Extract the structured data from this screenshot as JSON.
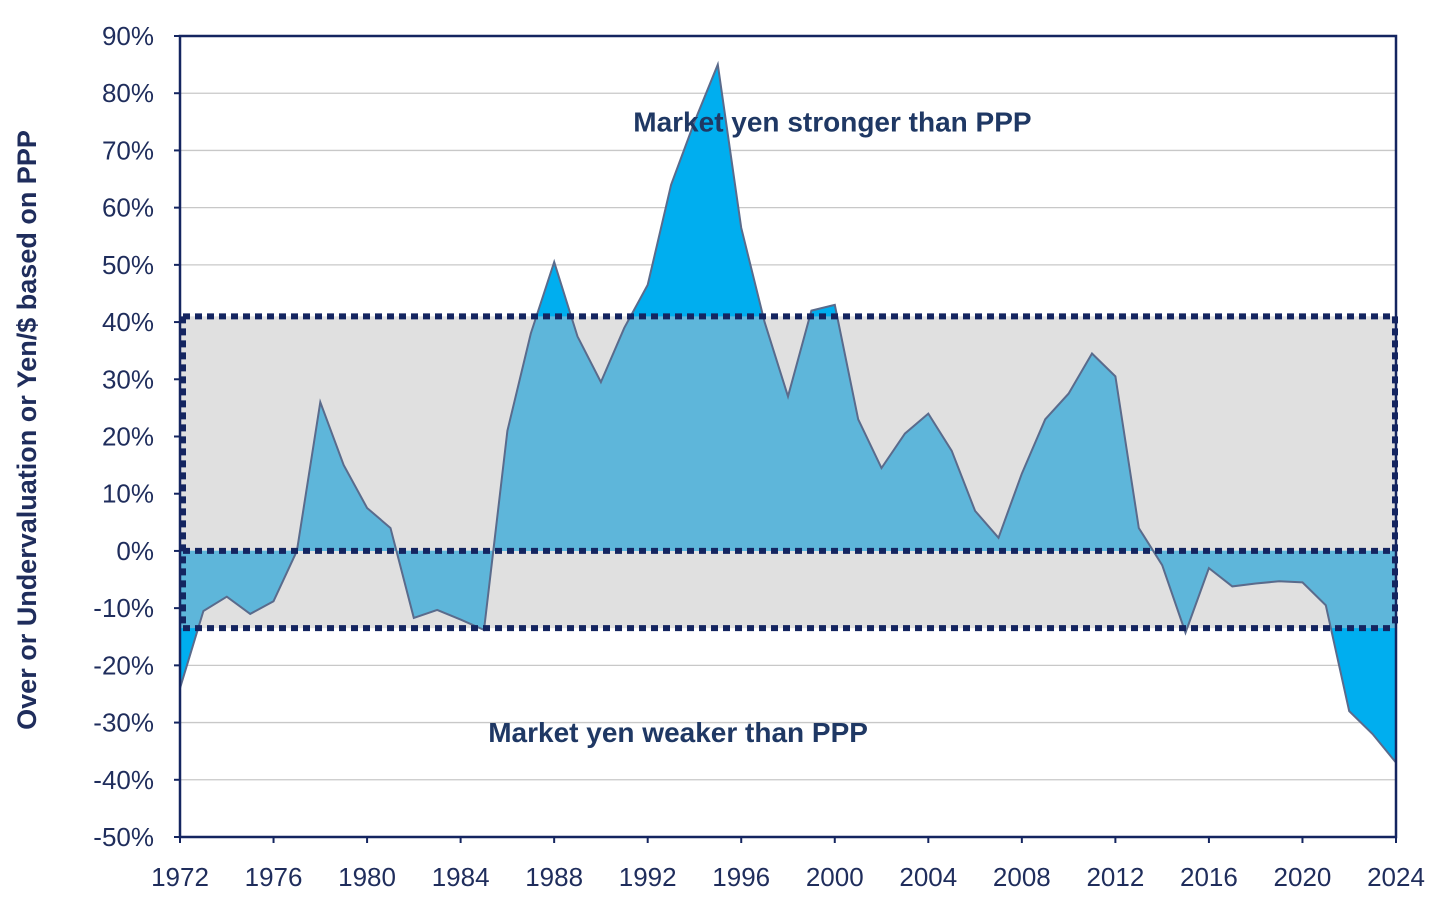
{
  "chart_data": {
    "type": "area",
    "title": "",
    "xlabel": "",
    "ylabel": "Over or Undervaluation or Yen/$ based on PPP",
    "x": [
      1972,
      1973,
      1974,
      1975,
      1976,
      1977,
      1978,
      1979,
      1980,
      1981,
      1982,
      1983,
      1984,
      1985,
      1986,
      1987,
      1988,
      1989,
      1990,
      1991,
      1992,
      1993,
      1994,
      1995,
      1996,
      1997,
      1998,
      1999,
      2000,
      2001,
      2002,
      2003,
      2004,
      2005,
      2006,
      2007,
      2008,
      2009,
      2010,
      2011,
      2012,
      2013,
      2014,
      2015,
      2016,
      2017,
      2018,
      2019,
      2020,
      2021,
      2022,
      2023,
      2024
    ],
    "series": [
      {
        "values": [
          -24,
          -10.5,
          -8,
          -11,
          -8.8,
          0,
          26,
          15,
          7.5,
          4,
          -11.7,
          -10.3,
          -12,
          -13.8,
          21,
          38,
          50.5,
          37.5,
          29.5,
          39,
          46.5,
          64,
          75,
          85,
          56.5,
          40,
          27,
          42,
          43,
          23,
          14.5,
          20.5,
          24,
          17.5,
          7,
          2.3,
          13.5,
          23,
          27.5,
          34.5,
          30.5,
          4,
          -2.5,
          -14.3,
          -3,
          -6.2,
          -5.7,
          -5.3,
          -5.5,
          -9.5,
          -28,
          -32,
          -37
        ]
      }
    ],
    "xticks": [
      "1972",
      "1976",
      "1980",
      "1984",
      "1988",
      "1992",
      "1996",
      "2000",
      "2004",
      "2008",
      "2012",
      "2016",
      "2020",
      "2024"
    ],
    "yticks": [
      "90%",
      "80%",
      "70%",
      "60%",
      "50%",
      "40%",
      "30%",
      "20%",
      "10%",
      "0%",
      "-10%",
      "-20%",
      "-30%",
      "-40%",
      "-50%"
    ],
    "ylim": [
      -50,
      90
    ],
    "xlim": [
      1972,
      2024
    ],
    "band": {
      "upper": 41,
      "lower": -13.5,
      "zero": 0
    },
    "annotations": {
      "stronger": "Market yen stronger than PPP",
      "weaker": "Market yen weaker than PPP"
    },
    "grid": true,
    "colors": {
      "area_outside": "#00aeef",
      "area_inside": "#5eb6da",
      "band": "#e0e0e0",
      "line": "#5a6b8c",
      "dotted": "#142560",
      "frame": "#142560",
      "grid": "#c8c8c8",
      "text": "#1f2d5c"
    }
  }
}
